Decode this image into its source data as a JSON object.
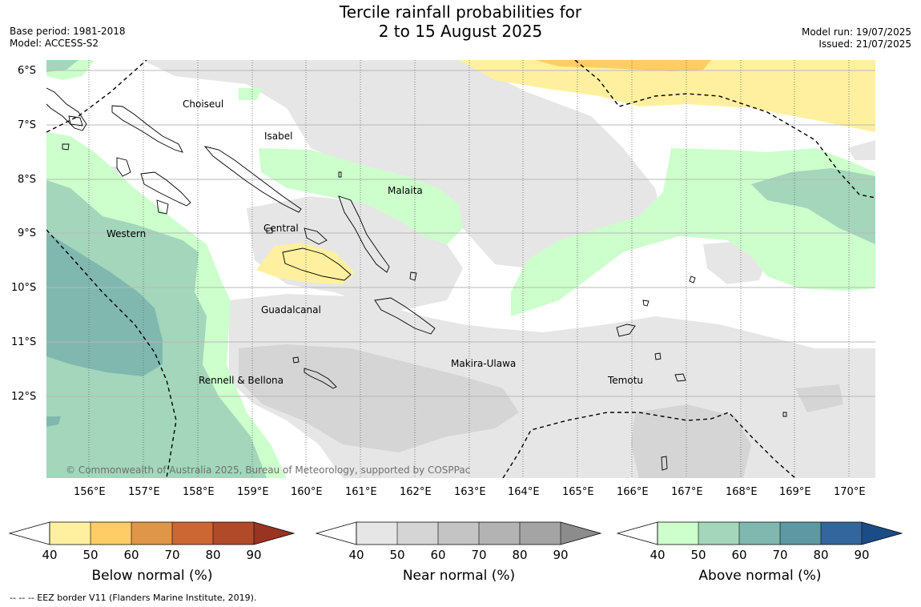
{
  "header": {
    "title_line1": "Tercile rainfall probabilities for",
    "title_line2": "2 to 15 August 2025",
    "base_period": "Base period: 1981-2018",
    "model": "Model: ACCESS-S2",
    "model_run": "Model run: 19/07/2025",
    "issued": "Issued: 21/07/2025"
  },
  "map": {
    "lat_labels": [
      "6°S",
      "7°S",
      "8°S",
      "9°S",
      "10°S",
      "11°S",
      "12°S"
    ],
    "lon_labels": [
      "156°E",
      "157°E",
      "158°E",
      "159°E",
      "160°E",
      "161°E",
      "162°E",
      "163°E",
      "164°E",
      "165°E",
      "166°E",
      "167°E",
      "168°E",
      "169°E",
      "170°E"
    ],
    "places": [
      {
        "name": "Choiseul"
      },
      {
        "name": "Isabel"
      },
      {
        "name": "Malaita"
      },
      {
        "name": "Western"
      },
      {
        "name": "Central"
      },
      {
        "name": "Guadalcanal"
      },
      {
        "name": "Makira-Ulawa"
      },
      {
        "name": "Temotu"
      },
      {
        "name": "Rennell & Bellona"
      }
    ],
    "copyright": "© Commonwealth of Australia 2025, Bureau of Meteorology, supported by COSPPac",
    "colors": {
      "below": [
        "#fff0a0",
        "#ffcc66",
        "#e09648",
        "#cc6633",
        "#b04a28",
        "#993322"
      ],
      "near": [
        "#e6e6e6",
        "#d5d5d5",
        "#c4c4c4",
        "#b3b3b3",
        "#a4a4a4",
        "#8c8c8c"
      ],
      "above": [
        "#ccffcc",
        "#a3d6bb",
        "#80b8b0",
        "#5e99a3",
        "#33669c",
        "#1a4d88"
      ]
    }
  },
  "colorbars": [
    {
      "label": "Below normal (%)",
      "ticks": [
        "40",
        "50",
        "60",
        "70",
        "80",
        "90"
      ]
    },
    {
      "label": "Near normal (%)",
      "ticks": [
        "40",
        "50",
        "60",
        "70",
        "80",
        "90"
      ]
    },
    {
      "label": "Above normal (%)",
      "ticks": [
        "40",
        "50",
        "60",
        "70",
        "80",
        "90"
      ]
    }
  ],
  "footnote": "--  --  -- EEZ border V11 (Flanders Marine Institute, 2019)."
}
